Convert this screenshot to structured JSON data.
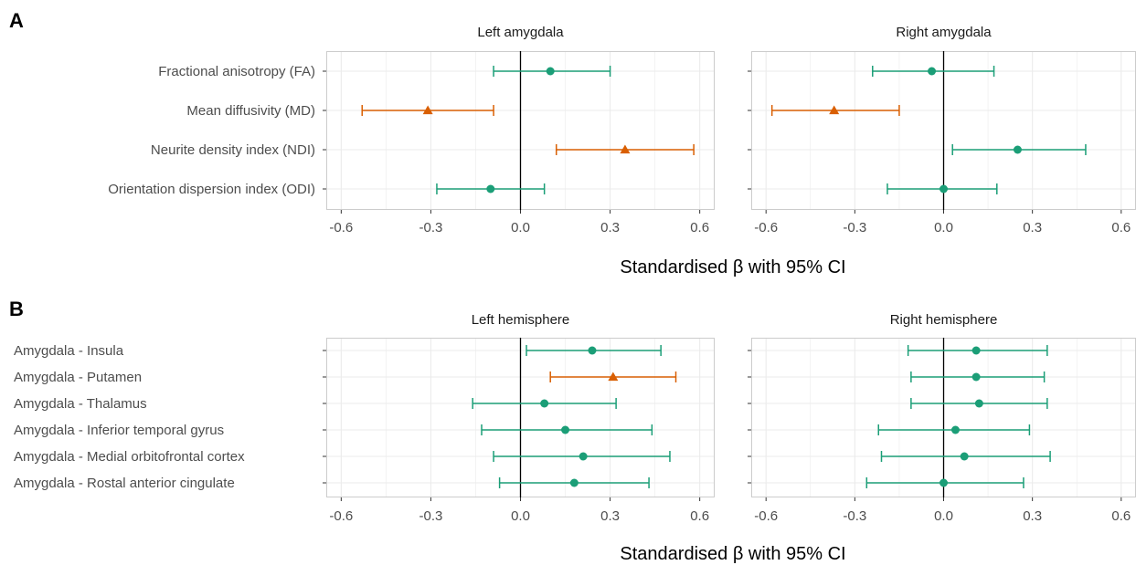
{
  "panels": [
    {
      "letter": "A",
      "rows": [
        "Fractional anisotropy (FA)",
        "Mean diffusivity (MD)",
        "Neurite density index (NDI)",
        "Orientation dispersion index (ODI)"
      ],
      "xlabel": "Standardised β with 95% CI"
    },
    {
      "letter": "B",
      "rows": [
        "Amygdala - Insula",
        "Amygdala - Putamen",
        "Amygdala - Thalamus",
        "Amygdala - Inferior temporal gyrus",
        "Amygdala - Medial orbitofrontal cortex",
        "Amygdala - Rostal anterior cingulate"
      ],
      "xlabel": "Standardised β with 95% CI"
    }
  ],
  "colors": {
    "significant": "#d95f02",
    "non_significant": "#1b9e77",
    "zero_line": "#000000",
    "grid": "#ebebeb",
    "panel_border": "#cccccc"
  },
  "chart_data": [
    {
      "type": "forest",
      "panel": "A",
      "title": "Left amygdala",
      "xlim": [
        -0.65,
        0.65
      ],
      "xticks": [
        "-0.6",
        "-0.3",
        "0.0",
        "0.3",
        "0.6"
      ],
      "xlabel": "Standardised β with 95% CI",
      "grid": true,
      "categories": [
        "Fractional anisotropy (FA)",
        "Mean diffusivity (MD)",
        "Neurite density index (NDI)",
        "Orientation dispersion index (ODI)"
      ],
      "estimates": [
        0.1,
        -0.31,
        0.35,
        -0.1
      ],
      "lower": [
        -0.09,
        -0.53,
        0.12,
        -0.28
      ],
      "upper": [
        0.3,
        -0.09,
        0.58,
        0.08
      ],
      "significant": [
        false,
        true,
        true,
        false
      ]
    },
    {
      "type": "forest",
      "panel": "A",
      "title": "Right amygdala",
      "xlim": [
        -0.65,
        0.65
      ],
      "xticks": [
        "-0.6",
        "-0.3",
        "0.0",
        "0.3",
        "0.6"
      ],
      "xlabel": "Standardised β with 95% CI",
      "grid": true,
      "categories": [
        "Fractional anisotropy (FA)",
        "Mean diffusivity (MD)",
        "Neurite density index (NDI)",
        "Orientation dispersion index (ODI)"
      ],
      "estimates": [
        -0.04,
        -0.37,
        0.25,
        0.0
      ],
      "lower": [
        -0.24,
        -0.58,
        0.03,
        -0.19
      ],
      "upper": [
        0.17,
        -0.15,
        0.48,
        0.18
      ],
      "significant": [
        false,
        true,
        false,
        false
      ]
    },
    {
      "type": "forest",
      "panel": "B",
      "title": "Left hemisphere",
      "xlim": [
        -0.65,
        0.65
      ],
      "xticks": [
        "-0.6",
        "-0.3",
        "0.0",
        "0.3",
        "0.6"
      ],
      "xlabel": "Standardised β with 95% CI",
      "grid": true,
      "categories": [
        "Amygdala - Insula",
        "Amygdala - Putamen",
        "Amygdala - Thalamus",
        "Amygdala - Inferior temporal gyrus",
        "Amygdala - Medial orbitofrontal cortex",
        "Amygdala - Rostal anterior cingulate"
      ],
      "estimates": [
        0.24,
        0.31,
        0.08,
        0.15,
        0.21,
        0.18
      ],
      "lower": [
        0.02,
        0.1,
        -0.16,
        -0.13,
        -0.09,
        -0.07
      ],
      "upper": [
        0.47,
        0.52,
        0.32,
        0.44,
        0.5,
        0.43
      ],
      "significant": [
        false,
        true,
        false,
        false,
        false,
        false
      ]
    },
    {
      "type": "forest",
      "panel": "B",
      "title": "Right hemisphere",
      "xlim": [
        -0.65,
        0.65
      ],
      "xticks": [
        "-0.6",
        "-0.3",
        "0.0",
        "0.3",
        "0.6"
      ],
      "xlabel": "Standardised β with 95% CI",
      "grid": true,
      "categories": [
        "Amygdala - Insula",
        "Amygdala - Putamen",
        "Amygdala - Thalamus",
        "Amygdala - Inferior temporal gyrus",
        "Amygdala - Medial orbitofrontal cortex",
        "Amygdala - Rostal anterior cingulate"
      ],
      "estimates": [
        0.11,
        0.11,
        0.12,
        0.04,
        0.07,
        0.0
      ],
      "lower": [
        -0.12,
        -0.11,
        -0.11,
        -0.22,
        -0.21,
        -0.26
      ],
      "upper": [
        0.35,
        0.34,
        0.35,
        0.29,
        0.36,
        0.27
      ],
      "significant": [
        false,
        false,
        false,
        false,
        false,
        false
      ]
    }
  ]
}
